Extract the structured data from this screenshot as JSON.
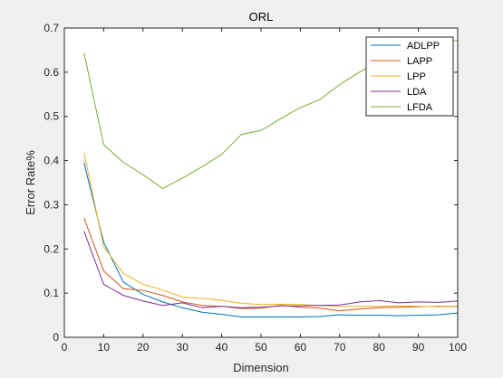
{
  "chart_data": {
    "type": "line",
    "title": "ORL",
    "xlabel": "Dimension",
    "ylabel": "Error Rate%",
    "xlim": [
      0,
      100
    ],
    "ylim": [
      0,
      0.7
    ],
    "xticks": [
      0,
      10,
      20,
      30,
      40,
      50,
      60,
      70,
      80,
      90,
      100
    ],
    "yticks": [
      0,
      0.1,
      0.2,
      0.3,
      0.4,
      0.5,
      0.6,
      0.7
    ],
    "xtick_labels": [
      "0",
      "10",
      "20",
      "30",
      "40",
      "50",
      "60",
      "70",
      "80",
      "90",
      "100"
    ],
    "ytick_labels": [
      "0",
      "0.1",
      "0.2",
      "0.3",
      "0.4",
      "0.5",
      "0.6",
      "0.7"
    ],
    "grid": false,
    "legend_position": "top-right",
    "x": [
      5,
      10,
      15,
      20,
      25,
      30,
      35,
      40,
      45,
      50,
      55,
      60,
      65,
      70,
      75,
      80,
      85,
      90,
      95,
      100
    ],
    "series": [
      {
        "name": "ADLPP",
        "color": "#0072BD",
        "values": [
          0.395,
          0.215,
          0.125,
          0.097,
          0.08,
          0.067,
          0.057,
          0.052,
          0.046,
          0.046,
          0.046,
          0.046,
          0.047,
          0.051,
          0.05,
          0.05,
          0.049,
          0.05,
          0.051,
          0.055
        ]
      },
      {
        "name": "LAPP",
        "color": "#D95319",
        "values": [
          0.27,
          0.15,
          0.11,
          0.106,
          0.095,
          0.08,
          0.072,
          0.07,
          0.065,
          0.066,
          0.072,
          0.068,
          0.066,
          0.06,
          0.064,
          0.067,
          0.068,
          0.069,
          0.07,
          0.07
        ]
      },
      {
        "name": "LPP",
        "color": "#EDB120",
        "values": [
          0.418,
          0.205,
          0.145,
          0.12,
          0.107,
          0.091,
          0.088,
          0.084,
          0.077,
          0.074,
          0.075,
          0.074,
          0.072,
          0.07,
          0.07,
          0.07,
          0.071,
          0.07,
          0.069,
          0.07
        ]
      },
      {
        "name": "LDA",
        "color": "#7E2F8E",
        "values": [
          0.24,
          0.12,
          0.095,
          0.082,
          0.072,
          0.078,
          0.067,
          0.07,
          0.067,
          0.068,
          0.071,
          0.071,
          0.072,
          0.073,
          0.08,
          0.083,
          0.078,
          0.08,
          0.079,
          0.082
        ]
      },
      {
        "name": "LFDA",
        "color": "#77AC30",
        "values": [
          0.644,
          0.436,
          0.396,
          0.368,
          0.337,
          0.36,
          0.386,
          0.414,
          0.459,
          0.468,
          0.495,
          0.52,
          0.538,
          0.572,
          0.6,
          0.625,
          0.648,
          0.66,
          0.668,
          0.672
        ]
      }
    ]
  }
}
